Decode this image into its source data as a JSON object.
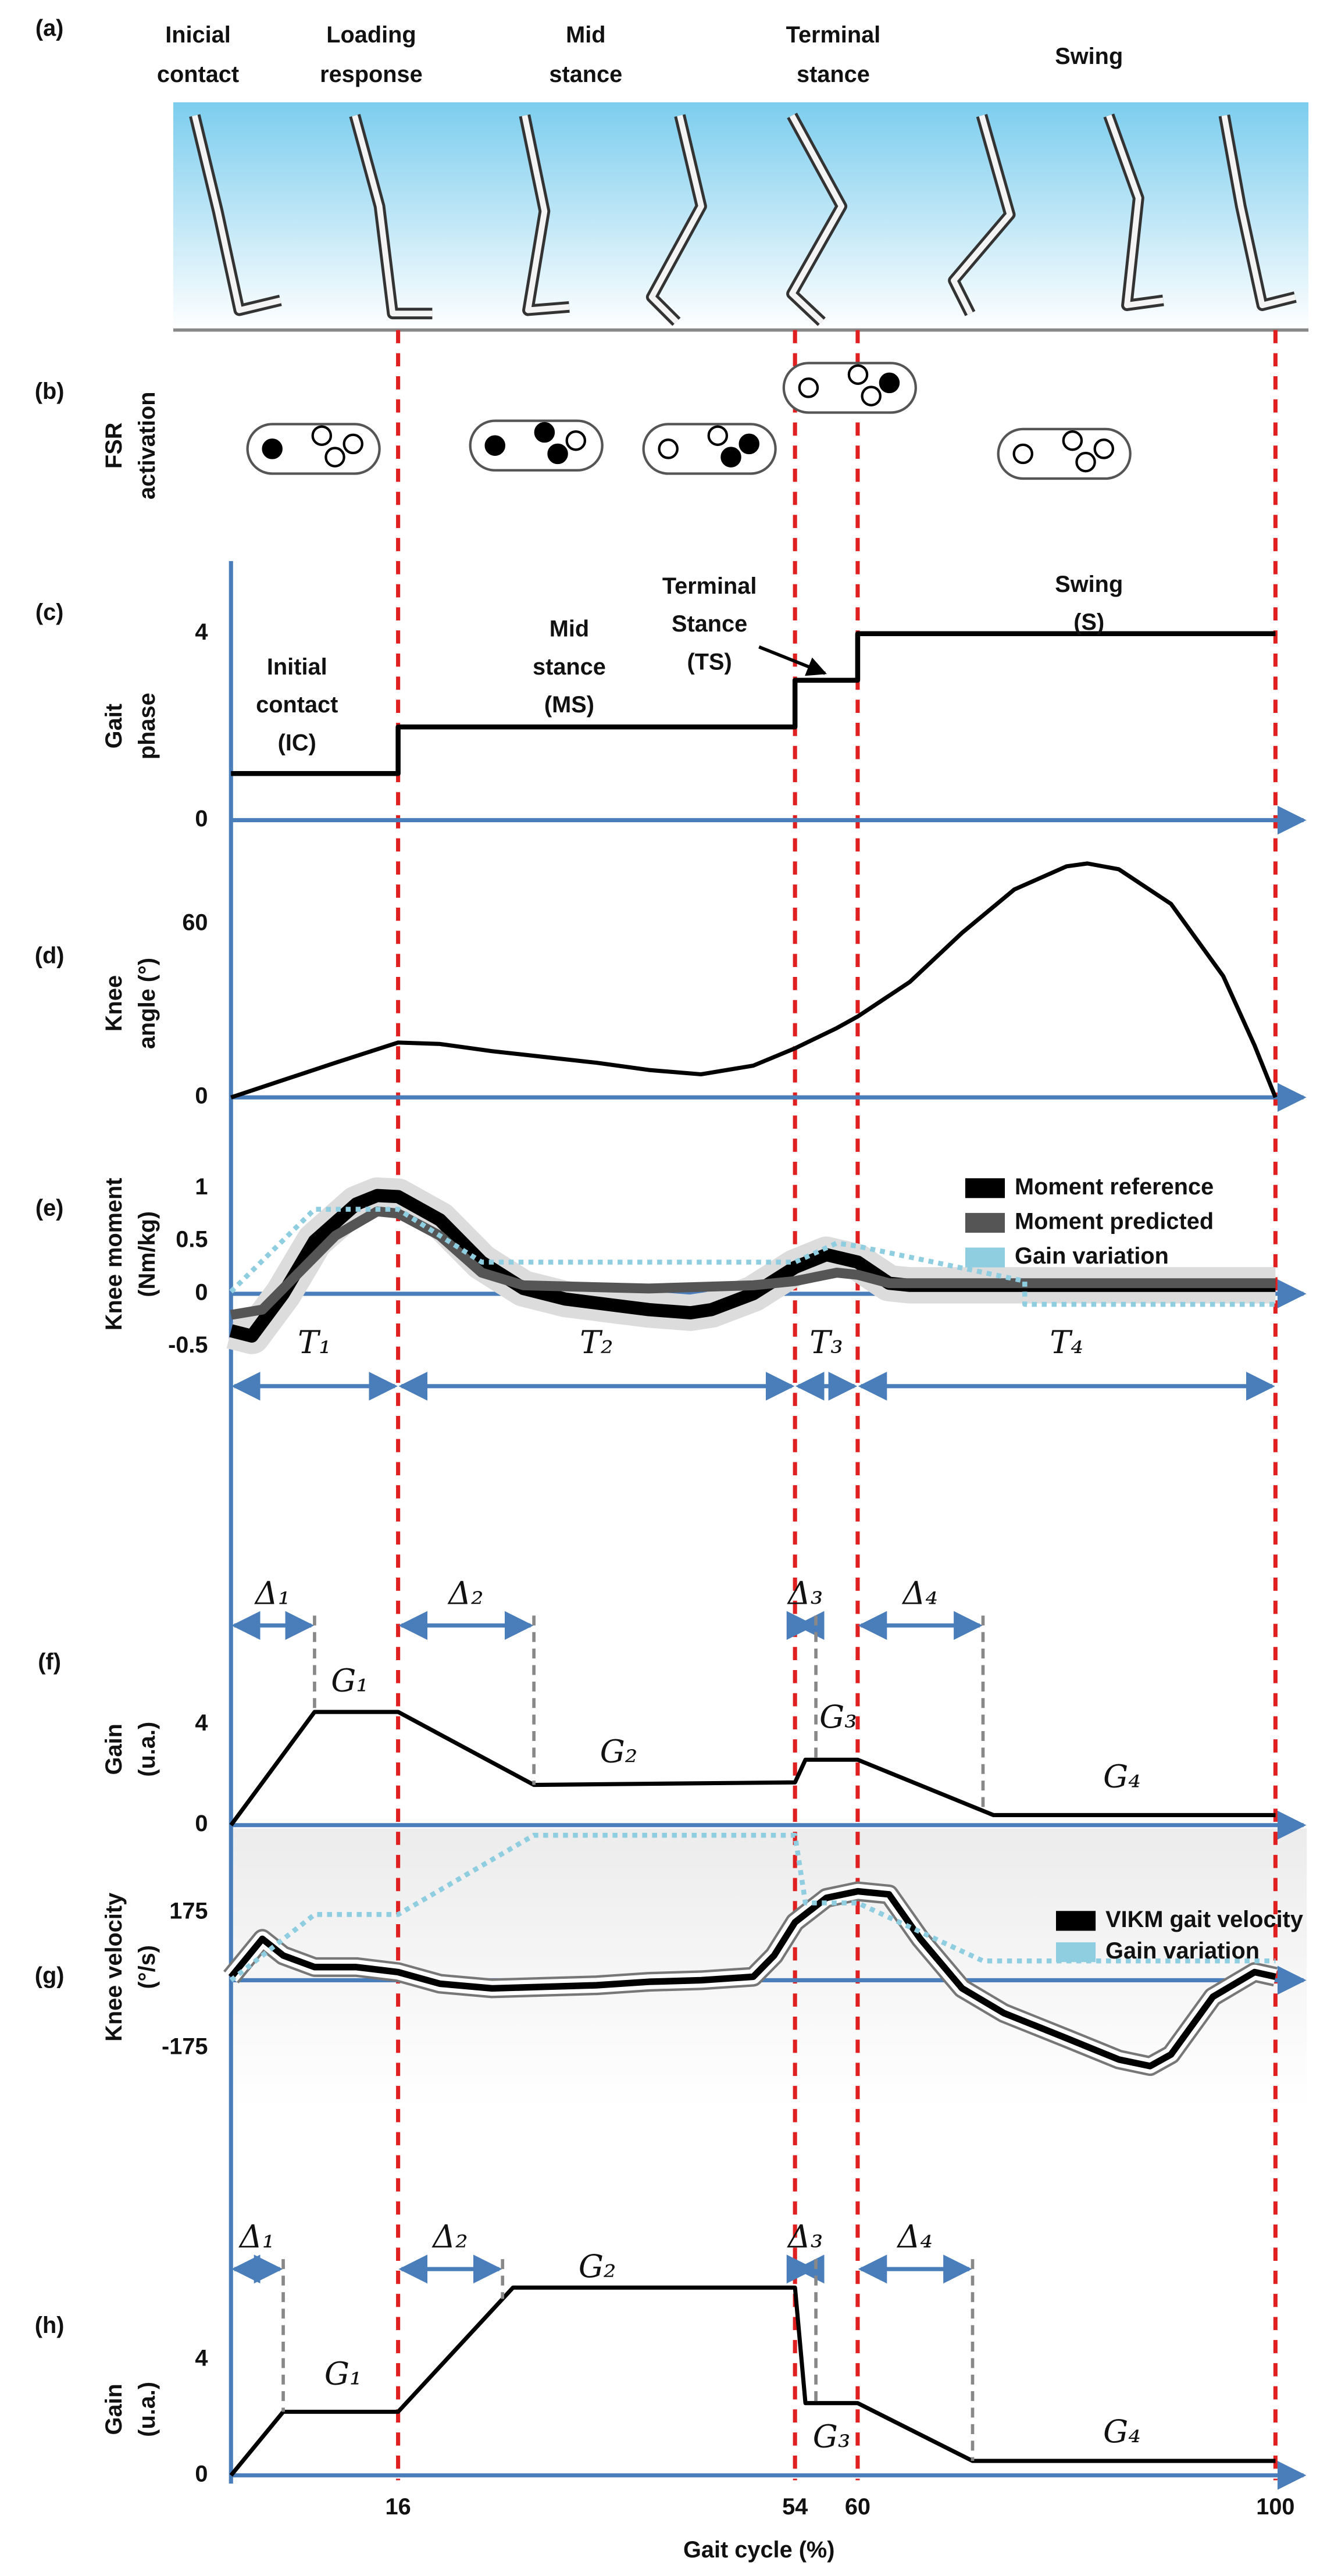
{
  "x_axis": {
    "label": "Gait cycle (%)",
    "xlim": [
      0,
      100
    ],
    "xticks": [
      16,
      54,
      60,
      100
    ]
  },
  "chart_data": [
    {
      "type": "phases",
      "letter": "(a)",
      "labels": [
        [
          "Inicial",
          "contact"
        ],
        [
          "Loading",
          "response"
        ],
        [
          "Mid",
          "stance"
        ],
        [
          "Terminal",
          "stance"
        ],
        [
          "Swing"
        ]
      ]
    },
    {
      "type": "fsr",
      "letter": "(b)",
      "ylabel": [
        "FSR",
        "activation"
      ]
    },
    {
      "type": "line",
      "letter": "(c)",
      "ylabel": [
        "Gait",
        "phase"
      ],
      "ylim": [
        0,
        5.5
      ],
      "yticks": [
        0,
        4
      ],
      "series": [
        {
          "color": "#000000",
          "x": [
            0,
            16,
            16,
            54,
            54,
            60,
            60,
            100
          ],
          "values": [
            1,
            1,
            2,
            2,
            3,
            3,
            4,
            4
          ]
        }
      ],
      "annotations": [
        [
          "Initial",
          "contact",
          "(IC)"
        ],
        [
          "Mid",
          "stance",
          "(MS)"
        ],
        [
          "Terminal",
          "Stance",
          "(TS)"
        ],
        [
          "Swing",
          "(S)"
        ]
      ]
    },
    {
      "type": "line",
      "letter": "(d)",
      "ylabel": [
        "Knee",
        "angle  (°)"
      ],
      "ylim": [
        0,
        94
      ],
      "yticks": [
        0,
        60
      ],
      "series": [
        {
          "color": "#000000",
          "x": [
            0,
            5,
            10,
            16,
            20,
            25,
            30,
            35,
            40,
            45,
            50,
            54,
            58,
            60,
            65,
            70,
            75,
            80,
            82,
            85,
            90,
            95,
            98,
            100
          ],
          "values": [
            0,
            6,
            12,
            19,
            18.5,
            16,
            14,
            12,
            9.5,
            8,
            11,
            17,
            24,
            28,
            40,
            57,
            72,
            80,
            81,
            79,
            67,
            42,
            18,
            0
          ]
        }
      ]
    },
    {
      "type": "line",
      "letter": "(e)",
      "ylabel": [
        "Knee moment",
        "(Nm/kg)"
      ],
      "ylim": [
        -0.85,
        1.8
      ],
      "yticks": [
        -0.5,
        0,
        0.5,
        1
      ],
      "series": [
        {
          "name": "Moment reference",
          "color": "#000000",
          "x": [
            0,
            2,
            5,
            8,
            12,
            14,
            16,
            20,
            24,
            28,
            32,
            36,
            40,
            44,
            46,
            50,
            54,
            57,
            60,
            63,
            65,
            100
          ],
          "values": [
            -0.35,
            -0.4,
            0.0,
            0.5,
            0.85,
            0.93,
            0.92,
            0.7,
            0.3,
            0.05,
            -0.05,
            -0.1,
            -0.15,
            -0.18,
            -0.15,
            0.0,
            0.25,
            0.37,
            0.3,
            0.1,
            0.08,
            0.08
          ]
        },
        {
          "name": "Moment predicted",
          "color": "#555555",
          "x": [
            0,
            3,
            6,
            10,
            14,
            16,
            20,
            24,
            28,
            40,
            50,
            54,
            58,
            60,
            63,
            65,
            100
          ],
          "values": [
            -0.2,
            -0.15,
            0.15,
            0.55,
            0.78,
            0.76,
            0.55,
            0.2,
            0.08,
            0.05,
            0.08,
            0.12,
            0.2,
            0.18,
            0.1,
            0.1,
            0.1
          ]
        },
        {
          "name": "Gain variation",
          "color": "#8fcde0",
          "dashed": true,
          "x": [
            0,
            8,
            16,
            24,
            54,
            58,
            60,
            76,
            76,
            100
          ],
          "values": [
            0.02,
            0.8,
            0.8,
            0.3,
            0.3,
            0.48,
            0.45,
            0.12,
            -0.1,
            -0.1
          ]
        }
      ]
    },
    {
      "type": "intervals",
      "labels": [
        "T₁",
        "T₂",
        "T₃",
        "T₄"
      ]
    },
    {
      "type": "line",
      "letter": "(f)",
      "ylabel": [
        "Gain",
        "(u.a.)"
      ],
      "ylim": [
        0,
        5.3
      ],
      "yticks": [
        0,
        4
      ],
      "series": [
        {
          "color": "#000000",
          "x": [
            0,
            8,
            16,
            29,
            54,
            55,
            60,
            73,
            100
          ],
          "values": [
            0,
            4.5,
            4.5,
            1.6,
            1.7,
            2.6,
            2.6,
            0.4,
            0.4
          ]
        }
      ],
      "deltas": [
        "Δ₁",
        "Δ₂",
        "Δ₃",
        "Δ₄"
      ],
      "delta_ends": [
        8,
        29,
        56,
        72
      ],
      "gains": [
        "G₁",
        "G₂",
        "G₃",
        "G₄"
      ]
    },
    {
      "type": "line",
      "letter": "(g)",
      "ylabel": [
        "Knee  velocity",
        "(°/s)"
      ],
      "ylim": [
        -330,
        390
      ],
      "yticks": [
        -175,
        175
      ],
      "series": [
        {
          "name": "VIKM gait velocity",
          "color": "#000000",
          "x": [
            0,
            3,
            5,
            8,
            12,
            16,
            20,
            25,
            30,
            35,
            40,
            45,
            50,
            52,
            54,
            57,
            60,
            63,
            66,
            70,
            74,
            80,
            85,
            88,
            90,
            94,
            98,
            100
          ],
          "values": [
            8,
            107,
            64,
            34,
            34,
            21,
            -9,
            -21,
            -17,
            -13,
            -4,
            0,
            9,
            64,
            150,
            213,
            230,
            222,
            107,
            -21,
            -85,
            -150,
            -205,
            -222,
            -192,
            -43,
            21,
            9
          ]
        },
        {
          "name": "Gain variation",
          "color": "#8fcde0",
          "dashed": true,
          "x": [
            0,
            8,
            16,
            29,
            54,
            55,
            60,
            72,
            100
          ],
          "values": [
            0,
            170,
            170,
            375,
            375,
            200,
            200,
            50,
            50
          ]
        }
      ]
    },
    {
      "type": "line",
      "letter": "(h)",
      "ylabel": [
        "Gain",
        "(u.a.)"
      ],
      "ylim": [
        0,
        7
      ],
      "yticks": [
        0,
        4
      ],
      "series": [
        {
          "color": "#000000",
          "x": [
            0,
            5,
            16,
            27,
            54,
            55,
            60,
            71,
            100
          ],
          "values": [
            0,
            2.2,
            2.2,
            6.5,
            6.5,
            2.5,
            2.5,
            0.5,
            0.5
          ]
        }
      ],
      "deltas": [
        "Δ₁",
        "Δ₂",
        "Δ₃",
        "Δ₄"
      ],
      "delta_ends": [
        5,
        26,
        56,
        71
      ],
      "gains": [
        "G₁",
        "G₂",
        "G₃",
        "G₄"
      ]
    }
  ]
}
